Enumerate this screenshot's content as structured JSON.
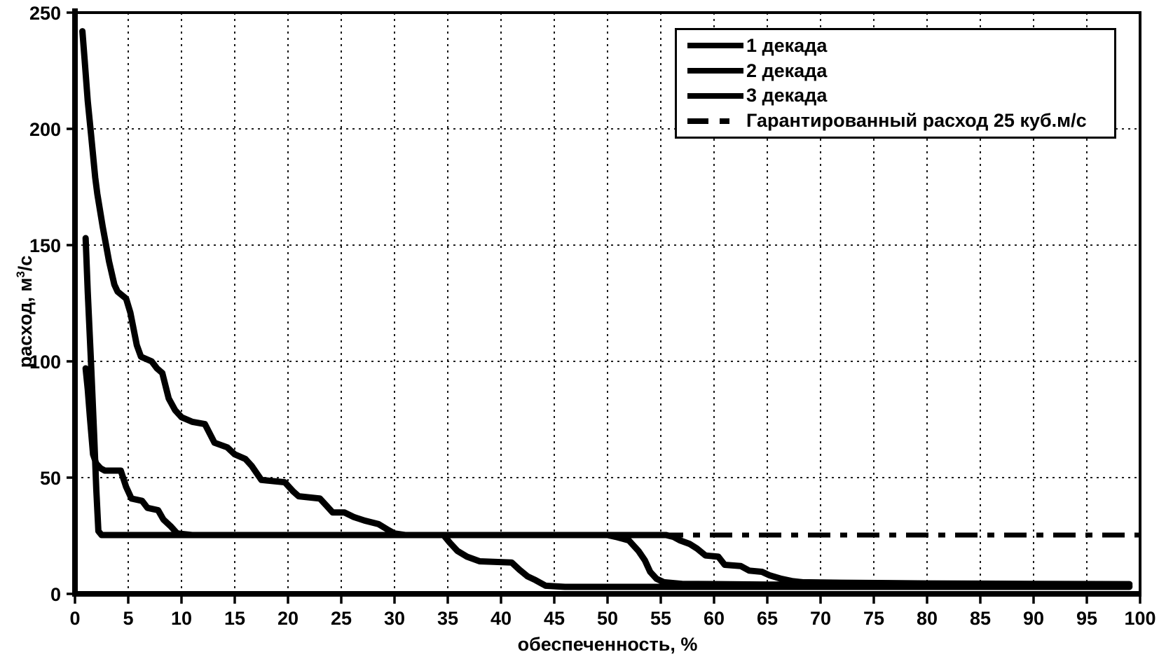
{
  "chart_data": {
    "type": "line",
    "title": "",
    "xlabel": "обеспеченность, %",
    "ylabel": "расход, м³/с",
    "ylabel_parts": {
      "prefix": "расход, м",
      "sup": "3",
      "suffix": "/с"
    },
    "xlim": [
      0,
      100
    ],
    "ylim": [
      0,
      250
    ],
    "xticks": [
      0,
      5,
      10,
      15,
      20,
      25,
      30,
      35,
      40,
      45,
      50,
      55,
      60,
      65,
      70,
      75,
      80,
      85,
      90,
      95,
      100
    ],
    "yticks": [
      0,
      50,
      100,
      150,
      200,
      250
    ],
    "grid": {
      "shown": true,
      "style": "dashed"
    },
    "legend_position": "top-right",
    "colors": {
      "line": "#000000",
      "background": "#ffffff",
      "grid": "#000000"
    },
    "series": [
      {
        "name": "1 декада",
        "style": "solid",
        "points": [
          [
            0.7,
            242
          ],
          [
            0.9,
            230
          ],
          [
            1.2,
            212
          ],
          [
            1.5,
            198
          ],
          [
            1.9,
            179
          ],
          [
            2.1,
            172
          ],
          [
            2.6,
            158
          ],
          [
            3.2,
            143
          ],
          [
            3.7,
            133
          ],
          [
            4,
            130
          ],
          [
            4.8,
            127
          ],
          [
            5.2,
            121
          ],
          [
            5.8,
            107
          ],
          [
            6.2,
            102
          ],
          [
            7.2,
            100
          ],
          [
            7.7,
            97
          ],
          [
            8.2,
            95
          ],
          [
            8.8,
            84
          ],
          [
            9.4,
            79
          ],
          [
            10,
            76
          ],
          [
            11,
            74
          ],
          [
            12.2,
            73
          ],
          [
            13.1,
            65
          ],
          [
            14.3,
            63
          ],
          [
            15,
            60
          ],
          [
            16,
            58
          ],
          [
            16.6,
            55
          ],
          [
            17.5,
            49
          ],
          [
            19.7,
            48
          ],
          [
            20.5,
            44
          ],
          [
            21,
            42
          ],
          [
            23,
            41
          ],
          [
            23.6,
            38
          ],
          [
            24.2,
            35
          ],
          [
            25.3,
            35
          ],
          [
            26.2,
            33
          ],
          [
            27.2,
            31.5
          ],
          [
            28.5,
            30
          ],
          [
            29.4,
            27.5
          ],
          [
            30,
            26
          ],
          [
            31,
            25.3
          ],
          [
            34.6,
            25.3
          ],
          [
            35.2,
            22
          ],
          [
            35.9,
            18.5
          ],
          [
            36.8,
            16
          ],
          [
            38,
            14
          ],
          [
            41,
            13.5
          ],
          [
            41.7,
            10.5
          ],
          [
            42.5,
            7.5
          ],
          [
            43.2,
            6
          ],
          [
            44.2,
            3.5
          ],
          [
            46,
            3
          ],
          [
            60,
            3
          ],
          [
            75,
            3
          ],
          [
            99,
            3
          ]
        ]
      },
      {
        "name": "2 декада",
        "style": "solid",
        "points": [
          [
            1,
            153
          ],
          [
            1.2,
            130
          ],
          [
            1.5,
            100
          ],
          [
            1.8,
            68
          ],
          [
            2,
            45
          ],
          [
            2.2,
            27
          ],
          [
            2.5,
            25.3
          ],
          [
            15,
            25.3
          ],
          [
            30,
            25.3
          ],
          [
            45,
            25.3
          ],
          [
            50,
            25.3
          ],
          [
            50.8,
            24.5
          ],
          [
            52,
            23
          ],
          [
            52.9,
            18.5
          ],
          [
            53.5,
            14.5
          ],
          [
            54,
            9.5
          ],
          [
            54.6,
            6.5
          ],
          [
            55.3,
            5
          ],
          [
            57,
            4.3
          ],
          [
            65,
            4
          ],
          [
            80,
            3.8
          ],
          [
            99,
            3.5
          ]
        ]
      },
      {
        "name": "3 декада",
        "style": "solid",
        "points": [
          [
            1,
            97
          ],
          [
            1.2,
            88
          ],
          [
            1.4,
            76
          ],
          [
            1.7,
            60
          ],
          [
            2,
            56
          ],
          [
            2.4,
            54
          ],
          [
            2.8,
            53
          ],
          [
            4.3,
            53
          ],
          [
            4.8,
            46
          ],
          [
            5.3,
            41
          ],
          [
            6.3,
            40
          ],
          [
            6.8,
            37
          ],
          [
            7.8,
            36
          ],
          [
            8.3,
            32
          ],
          [
            9,
            29
          ],
          [
            9.6,
            26
          ],
          [
            11,
            25.3
          ],
          [
            25,
            25.3
          ],
          [
            40,
            25.3
          ],
          [
            55.5,
            25.3
          ],
          [
            56.2,
            24.5
          ],
          [
            56.8,
            23
          ],
          [
            57.7,
            21.5
          ],
          [
            58.4,
            19.5
          ],
          [
            59.2,
            16.5
          ],
          [
            60.4,
            16
          ],
          [
            61,
            12.5
          ],
          [
            62.5,
            12
          ],
          [
            63.3,
            10
          ],
          [
            64.5,
            9.5
          ],
          [
            65.2,
            8
          ],
          [
            66.3,
            6.5
          ],
          [
            67.3,
            5.5
          ],
          [
            68.3,
            5
          ],
          [
            72,
            4.8
          ],
          [
            80,
            4.5
          ],
          [
            90,
            4.3
          ],
          [
            99,
            4.2
          ]
        ]
      }
    ],
    "guaranteed_line": {
      "label": "Гарантированный расход 25 куб.м/с",
      "value": 25.3,
      "x_start": 55,
      "x_end": 100,
      "style": "dash-dot"
    },
    "legend": {
      "entries": [
        {
          "label": "1 декада",
          "style": "solid"
        },
        {
          "label": "2 декада",
          "style": "solid"
        },
        {
          "label": "3 декада",
          "style": "solid"
        },
        {
          "label": "Гарантированный расход 25 куб.м/с",
          "style": "dash-dot"
        }
      ]
    }
  }
}
